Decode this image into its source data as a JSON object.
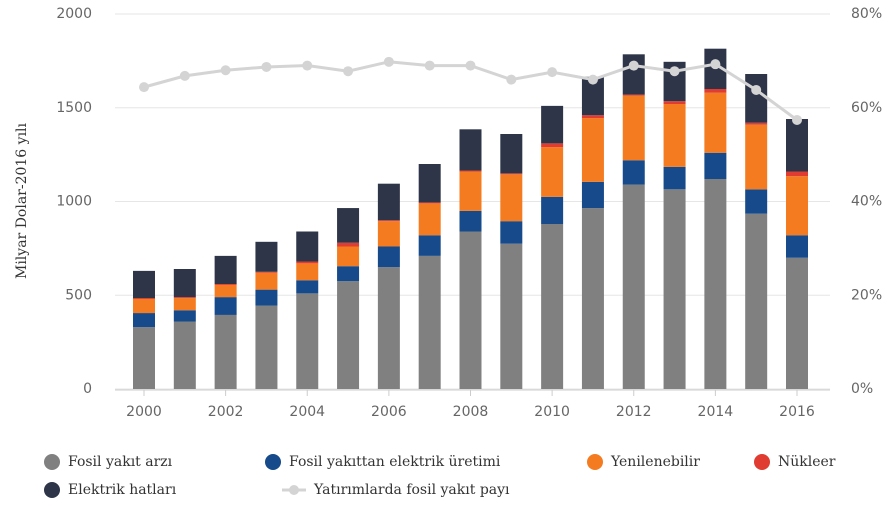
{
  "chart_data": {
    "type": "bar",
    "stacked": true,
    "y_label": "Milyar Dolar-2016 yılı",
    "categories": [
      "2000",
      null,
      "2002",
      null,
      "2004",
      null,
      "2006",
      null,
      "2008",
      null,
      "2010",
      null,
      "2012",
      null,
      "2014",
      null,
      "2016"
    ],
    "ylim": [
      0,
      2000
    ],
    "yticks": [
      0,
      500,
      1000,
      1500,
      2000
    ],
    "y2lim": [
      0,
      80
    ],
    "y2ticks": [
      {
        "value": 0,
        "label": "0%"
      },
      {
        "value": 20,
        "label": "20%"
      },
      {
        "value": 40,
        "label": "40%"
      },
      {
        "value": 60,
        "label": "60%"
      },
      {
        "value": 80,
        "label": "80%"
      }
    ],
    "grid": true,
    "series": [
      {
        "name": "Fosil yakıt arzı",
        "color": "#808080",
        "values": [
          330,
          360,
          395,
          445,
          510,
          575,
          650,
          710,
          840,
          775,
          880,
          965,
          1090,
          1065,
          1120,
          935,
          700
        ]
      },
      {
        "name": "Fosil yakıttan elektrik üretimi",
        "color": "#164a8a",
        "values": [
          75,
          60,
          95,
          85,
          70,
          80,
          110,
          110,
          110,
          120,
          145,
          140,
          130,
          120,
          140,
          130,
          120
        ]
      },
      {
        "name": "Yenilenebilir",
        "color": "#f47b20",
        "values": [
          75,
          65,
          65,
          90,
          90,
          105,
          135,
          170,
          210,
          250,
          265,
          340,
          345,
          335,
          320,
          345,
          315
        ]
      },
      {
        "name": "Nükleer",
        "color": "#e03c31",
        "values": [
          5,
          5,
          5,
          5,
          10,
          20,
          5,
          5,
          5,
          5,
          20,
          15,
          5,
          15,
          20,
          10,
          25
        ]
      },
      {
        "name": "Elektrik hatları",
        "color": "#2e3548",
        "values": [
          145,
          150,
          150,
          160,
          160,
          185,
          195,
          205,
          220,
          210,
          200,
          205,
          215,
          210,
          215,
          260,
          280
        ]
      },
      {
        "name": "Yatırımlarda fosil yakıt payı",
        "type": "line",
        "axis": "y2",
        "color": "#d4d4d4",
        "values": [
          64.4,
          66.8,
          68,
          68.7,
          69,
          67.8,
          69.8,
          69,
          69,
          66,
          67.6,
          66,
          69,
          67.8,
          69.3,
          63.8,
          57.4
        ]
      }
    ]
  }
}
